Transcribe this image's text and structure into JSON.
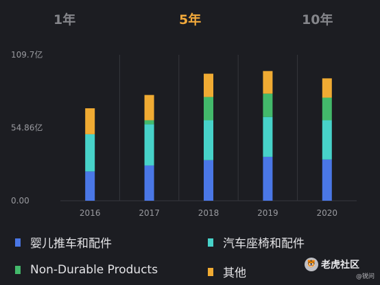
{
  "tabs": [
    {
      "label": "1年",
      "active": false
    },
    {
      "label": "5年",
      "active": true
    },
    {
      "label": "10年",
      "active": false
    }
  ],
  "colors": {
    "background": "#1c1d22",
    "active_tab": "#f2a93b",
    "inactive_tab": "#85868b",
    "grid": "#36373d"
  },
  "chart_data": {
    "type": "bar",
    "stacked": true,
    "categories": [
      "2016",
      "2017",
      "2018",
      "2019",
      "2020"
    ],
    "series": [
      {
        "name": "婴儿推车和配件",
        "color": "#4a77e6",
        "values": [
          22.0,
          26.5,
          30.5,
          33.0,
          31.0
        ]
      },
      {
        "name": "汽车座椅和配件",
        "color": "#47d2c9",
        "values": [
          28.0,
          31.0,
          30.0,
          30.0,
          29.5
        ]
      },
      {
        "name": "Non-Durable Products",
        "color": "#43b96b",
        "values": [
          0.0,
          3.0,
          17.5,
          17.5,
          17.0
        ]
      },
      {
        "name": "其他",
        "color": "#f0ab33",
        "values": [
          19.5,
          19.0,
          17.5,
          17.0,
          14.5
        ]
      }
    ],
    "yticks": [
      "0.00",
      "54.86亿",
      "109.7亿"
    ],
    "ylim": [
      0,
      109.7
    ],
    "grid": true,
    "legend": "bottom"
  },
  "watermark": {
    "title": "老虎社区",
    "sub": "@锐问",
    "logo": "tiger-logo"
  }
}
